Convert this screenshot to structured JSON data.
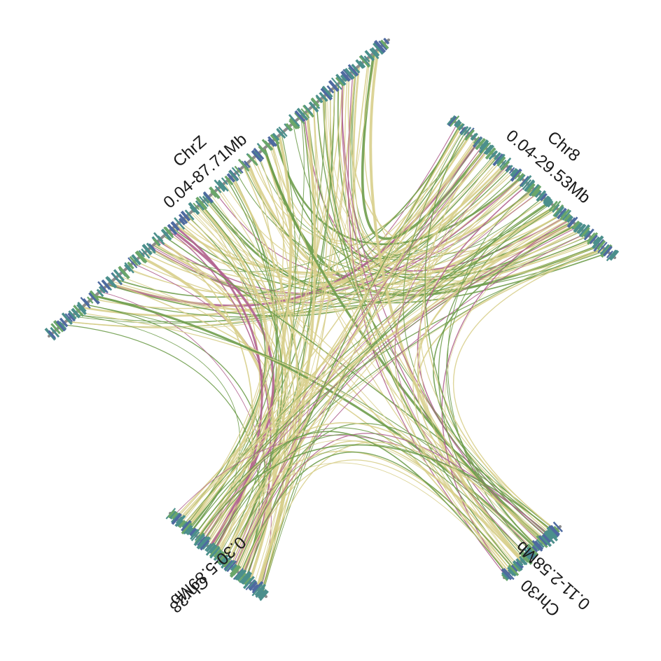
{
  "colors": {
    "background": "#ffffff",
    "axis": "#8c8c8c",
    "link_yellow": "#d8cf8c",
    "link_green": "#6f9d4c",
    "link_magenta": "#b0628f",
    "gene_teal": "#4b8f8c",
    "gene_blue": "#4e6aa0",
    "gene_green": "#6aa66a"
  },
  "chromosomes": [
    {
      "id": "chrZ",
      "name": "ChrZ",
      "range": "0.04-87.71Mb"
    },
    {
      "id": "chr8",
      "name": "Chr8",
      "range": "0.04-29.53Mb"
    },
    {
      "id": "chr30",
      "name": "Chr30",
      "range": "0.11-2.58Mb"
    },
    {
      "id": "chr28",
      "name": "Chr28",
      "range": "0.30-5.89Mb"
    }
  ]
}
